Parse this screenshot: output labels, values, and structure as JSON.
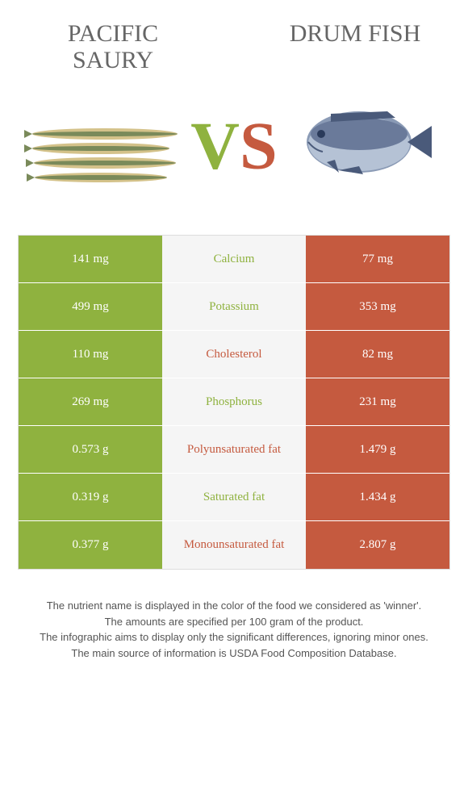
{
  "header": {
    "left_title": "PACIFIC SAURY",
    "right_title": "DRUM FISH",
    "vs_v": "V",
    "vs_s": "S"
  },
  "colors": {
    "green": "#8fb23f",
    "orange": "#c55a3f",
    "mid_bg": "#f5f5f5",
    "fish1_body": "#d4c28a",
    "fish1_back": "#7a8a5a",
    "fish2_body": "#6a7a9a",
    "fish2_fin": "#4a5a7a"
  },
  "rows": [
    {
      "left": "141 mg",
      "mid": "Calcium",
      "right": "77 mg",
      "winner": "left"
    },
    {
      "left": "499 mg",
      "mid": "Potassium",
      "right": "353 mg",
      "winner": "left"
    },
    {
      "left": "110 mg",
      "mid": "Cholesterol",
      "right": "82 mg",
      "winner": "right"
    },
    {
      "left": "269 mg",
      "mid": "Phosphorus",
      "right": "231 mg",
      "winner": "left"
    },
    {
      "left": "0.573 g",
      "mid": "Polyunsaturated fat",
      "right": "1.479 g",
      "winner": "right"
    },
    {
      "left": "0.319 g",
      "mid": "Saturated fat",
      "right": "1.434 g",
      "winner": "left"
    },
    {
      "left": "0.377 g",
      "mid": "Monounsaturated fat",
      "right": "2.807 g",
      "winner": "right"
    }
  ],
  "footer": {
    "l1": "The nutrient name is displayed in the color of the food we considered as 'winner'.",
    "l2": "The amounts are specified per 100 gram of the product.",
    "l3": "The infographic aims to display only the significant differences, ignoring minor ones.",
    "l4": "The main source of information is USDA Food Composition Database."
  }
}
